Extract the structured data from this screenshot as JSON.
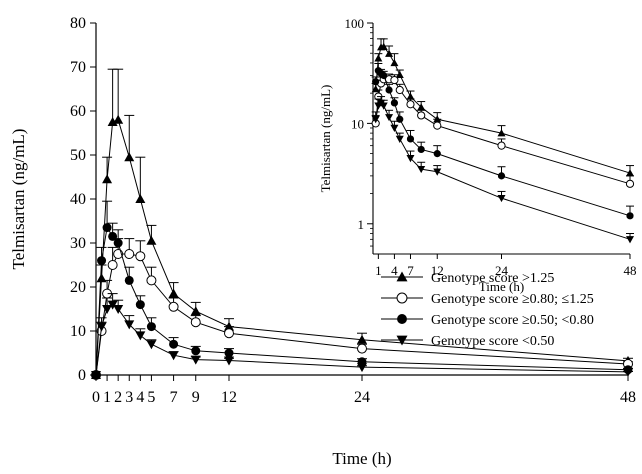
{
  "chart_data": [
    {
      "type": "line",
      "xlabel": "Time (h)",
      "ylabel": "Telmisartan (ng/mL)",
      "xlim": [
        0,
        48
      ],
      "ylim": [
        0,
        80
      ],
      "x_ticks": [
        0,
        1,
        2,
        3,
        4,
        5,
        7,
        9,
        12,
        24,
        48
      ],
      "x_tick_labels": [
        "0",
        "1",
        "2",
        "3",
        "4",
        "5",
        "7",
        "9",
        "12",
        "24",
        "48"
      ],
      "y_ticks": [
        0,
        10,
        20,
        30,
        40,
        50,
        60,
        70,
        80
      ],
      "y_tick_labels": [
        "0",
        "10",
        "20",
        "30",
        "40",
        "50",
        "60",
        "70",
        "80"
      ],
      "grid": false,
      "legend_position": "right",
      "series": [
        {
          "name": "Genotype score >1.25",
          "marker": "triangle-up-filled",
          "x": [
            0,
            0.5,
            1,
            1.5,
            2,
            3,
            4,
            5,
            7,
            9,
            12,
            24,
            48
          ],
          "y": [
            0,
            22,
            44.5,
            57.5,
            58,
            49.5,
            40,
            30.5,
            18.5,
            14.5,
            11,
            8,
            3.2
          ],
          "err": [
            0,
            3,
            5,
            12,
            11.5,
            9.5,
            9.5,
            3.5,
            2.5,
            2,
            1.8,
            1.5,
            0.6
          ]
        },
        {
          "name": "Genotype score ≥0.80; ≤1.25",
          "marker": "circle-open",
          "x": [
            0,
            0.5,
            1,
            1.5,
            2,
            3,
            4,
            5,
            7,
            9,
            12,
            24,
            48
          ],
          "y": [
            0,
            10,
            18.5,
            25,
            27.5,
            27.5,
            27,
            21.5,
            15.5,
            12,
            9.5,
            6,
            2.5
          ],
          "err": [
            0,
            2,
            3,
            4,
            3.5,
            3.5,
            3.5,
            3,
            2,
            1.5,
            1.5,
            1,
            0.5
          ]
        },
        {
          "name": "Genotype score ≥0.50; <0.80",
          "marker": "circle-filled",
          "x": [
            0,
            0.5,
            1,
            1.5,
            2,
            3,
            4,
            5,
            7,
            9,
            12,
            24,
            48
          ],
          "y": [
            0,
            26,
            33.5,
            31.5,
            30,
            21.5,
            16,
            11,
            7,
            5.5,
            5,
            3,
            1.2
          ],
          "err": [
            0,
            3,
            6,
            3,
            3,
            3,
            2,
            2,
            1.5,
            1,
            1,
            0.7,
            0.3
          ]
        },
        {
          "name": "Genotype score <0.50",
          "marker": "triangle-down-filled",
          "x": [
            0,
            0.5,
            1,
            1.5,
            2,
            3,
            4,
            5,
            7,
            9,
            12,
            24,
            48
          ],
          "y": [
            0,
            11,
            15,
            16,
            15,
            11.5,
            9,
            7,
            4.5,
            3.5,
            3.3,
            1.8,
            0.7
          ],
          "err": [
            0,
            2,
            2.5,
            2.5,
            2,
            2,
            1.5,
            1,
            0.8,
            0.6,
            0.5,
            0.3,
            0.1
          ]
        }
      ]
    },
    {
      "type": "line",
      "xlabel": "Time (h)",
      "ylabel": "Telmisartan (ng/mL)",
      "xlim": [
        0,
        48
      ],
      "ylim": [
        0.5,
        100
      ],
      "yscale": "log",
      "x_ticks": [
        1,
        4,
        7,
        12,
        24,
        48
      ],
      "x_tick_labels": [
        "1",
        "4",
        "7",
        "12",
        "24",
        "48"
      ],
      "y_ticks": [
        1,
        10,
        100
      ],
      "y_tick_labels": [
        "1",
        "10",
        "100"
      ],
      "grid": false,
      "series": [
        {
          "name": "Genotype score >1.25",
          "marker": "triangle-up-filled",
          "x": [
            0.5,
            1,
            1.5,
            2,
            3,
            4,
            5,
            7,
            9,
            12,
            24,
            48
          ],
          "y": [
            22,
            44.5,
            57.5,
            58,
            49.5,
            40,
            30.5,
            18.5,
            14.5,
            11,
            8,
            3.2
          ],
          "err": [
            3,
            5,
            12,
            11.5,
            9.5,
            9.5,
            3.5,
            2.5,
            2,
            1.8,
            1.5,
            0.6
          ]
        },
        {
          "name": "Genotype score ≥0.80; ≤1.25",
          "marker": "circle-open",
          "x": [
            0.5,
            1,
            1.5,
            2,
            3,
            4,
            5,
            7,
            9,
            12,
            24,
            48
          ],
          "y": [
            10,
            18.5,
            25,
            27.5,
            27.5,
            27,
            21.5,
            15.5,
            12,
            9.5,
            6,
            2.5
          ],
          "err": [
            2,
            3,
            4,
            3.5,
            3.5,
            3.5,
            3,
            2,
            1.5,
            1.5,
            1,
            0.5
          ]
        },
        {
          "name": "Genotype score ≥0.50; <0.80",
          "marker": "circle-filled",
          "x": [
            0.5,
            1,
            1.5,
            2,
            3,
            4,
            5,
            7,
            9,
            12,
            24,
            48
          ],
          "y": [
            26,
            33.5,
            31.5,
            30,
            21.5,
            16,
            11,
            7,
            5.5,
            5,
            3,
            1.2
          ],
          "err": [
            3,
            6,
            3,
            3,
            3,
            2,
            2,
            1.5,
            1,
            1,
            0.7,
            0.3
          ]
        },
        {
          "name": "Genotype score <0.50",
          "marker": "triangle-down-filled",
          "x": [
            0.5,
            1,
            1.5,
            2,
            3,
            4,
            5,
            7,
            9,
            12,
            24,
            48
          ],
          "y": [
            11,
            15,
            16,
            15,
            11.5,
            9,
            7,
            4.5,
            3.5,
            3.3,
            1.8,
            0.7
          ],
          "err": [
            2,
            2.5,
            2.5,
            2,
            2,
            1.5,
            1,
            0.8,
            0.6,
            0.5,
            0.3,
            0.1
          ]
        }
      ]
    }
  ]
}
